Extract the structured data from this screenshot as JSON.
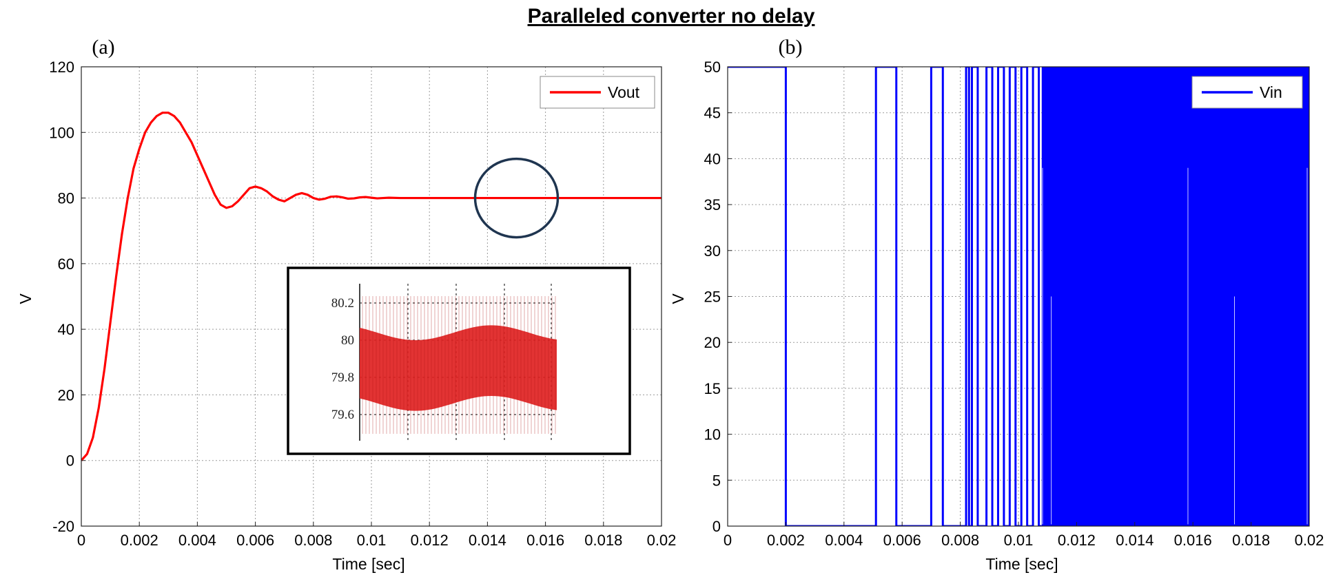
{
  "title": "Paralleled converter no delay",
  "chart_data": [
    {
      "panel_label": "(a)",
      "type": "line",
      "xlabel": "Time [sec]",
      "ylabel": "V",
      "xlim": [
        0,
        0.02
      ],
      "ylim": [
        -20,
        120
      ],
      "x_ticks": [
        0,
        0.002,
        0.004,
        0.006,
        0.008,
        0.01,
        0.012,
        0.014,
        0.016,
        0.018,
        0.02
      ],
      "x_tick_labels": [
        "0",
        "0.002",
        "0.004",
        "0.006",
        "0.008",
        "0.01",
        "0.012",
        "0.014",
        "0.016",
        "0.018",
        "0.02"
      ],
      "y_ticks": [
        -20,
        0,
        20,
        40,
        60,
        80,
        100,
        120
      ],
      "y_tick_labels": [
        "-20",
        "0",
        "20",
        "40",
        "60",
        "80",
        "100",
        "120"
      ],
      "grid": true,
      "legend_position": "top-right",
      "series": [
        {
          "name": "Vout",
          "color": "#ff0000",
          "x": [
            0,
            0.0002,
            0.0004,
            0.0006,
            0.0008,
            0.001,
            0.0012,
            0.0014,
            0.0016,
            0.0018,
            0.002,
            0.0022,
            0.0024,
            0.0026,
            0.0028,
            0.003,
            0.0032,
            0.0034,
            0.0036,
            0.0038,
            0.004,
            0.0042,
            0.0044,
            0.0046,
            0.0048,
            0.005,
            0.0052,
            0.0054,
            0.0056,
            0.0058,
            0.006,
            0.0062,
            0.0064,
            0.0066,
            0.0068,
            0.007,
            0.0072,
            0.0074,
            0.0076,
            0.0078,
            0.008,
            0.0082,
            0.0084,
            0.0086,
            0.0088,
            0.009,
            0.0092,
            0.0094,
            0.0096,
            0.0098,
            0.01,
            0.0102,
            0.0104,
            0.0106,
            0.011,
            0.012,
            0.013,
            0.014,
            0.015,
            0.016,
            0.017,
            0.018,
            0.019,
            0.02
          ],
          "y": [
            0,
            2,
            7,
            16,
            28,
            42,
            56,
            69,
            80,
            89,
            95,
            100,
            103,
            105,
            106,
            106,
            105,
            103,
            100,
            97,
            93,
            89,
            85,
            81,
            78,
            77,
            77.5,
            79,
            81,
            83,
            83.5,
            83,
            82,
            80.5,
            79.5,
            79,
            80,
            81,
            81.5,
            81,
            80,
            79.5,
            79.8,
            80.4,
            80.5,
            80.2,
            79.8,
            79.9,
            80.2,
            80.3,
            80.1,
            79.9,
            80,
            80.1,
            80,
            80,
            80,
            80,
            80,
            80,
            80,
            80,
            80,
            80
          ]
        }
      ],
      "annotation": {
        "type": "circle",
        "center_data": [
          0.015,
          80
        ],
        "color": "#1f3550"
      },
      "inset": {
        "y_tick_labels": [
          "80.2",
          "80",
          "79.8",
          "79.6"
        ],
        "y_ticks": [
          80.2,
          80,
          79.8,
          79.6
        ],
        "band_color": "#e02222",
        "band_center": 79.85,
        "band_half_width": 0.19,
        "wave_amplitude": 0.04
      }
    },
    {
      "panel_label": "(b)",
      "type": "line",
      "xlabel": "Time [sec]",
      "ylabel": "V",
      "xlim": [
        0,
        0.02
      ],
      "ylim": [
        0,
        50
      ],
      "x_ticks": [
        0,
        0.002,
        0.004,
        0.006,
        0.008,
        0.01,
        0.012,
        0.014,
        0.016,
        0.018,
        0.02
      ],
      "x_tick_labels": [
        "0",
        "0.002",
        "0.004",
        "0.006",
        "0.008",
        "0.01",
        "0.012",
        "0.014",
        "0.016",
        "0.018",
        "0.02"
      ],
      "y_ticks": [
        0,
        5,
        10,
        15,
        20,
        25,
        30,
        35,
        40,
        45,
        50
      ],
      "y_tick_labels": [
        "0",
        "5",
        "10",
        "15",
        "20",
        "25",
        "30",
        "35",
        "40",
        "45",
        "50"
      ],
      "grid": true,
      "legend_position": "top-right",
      "series": [
        {
          "name": "Vin",
          "color": "#0000ff",
          "on_intervals": [
            [
              0,
              0.002
            ],
            [
              0.0051,
              0.0058
            ],
            [
              0.007,
              0.0074
            ],
            [
              0.0082,
              0.0083
            ],
            [
              0.0084,
              0.0086
            ],
            [
              0.0089,
              0.0091
            ],
            [
              0.0093,
              0.0095
            ],
            [
              0.0097,
              0.0099
            ],
            [
              0.0101,
              0.0103
            ],
            [
              0.0105,
              0.0107
            ]
          ],
          "dense_switching_from": 0.0108,
          "high_level": 50,
          "low_level": 0
        }
      ]
    }
  ]
}
